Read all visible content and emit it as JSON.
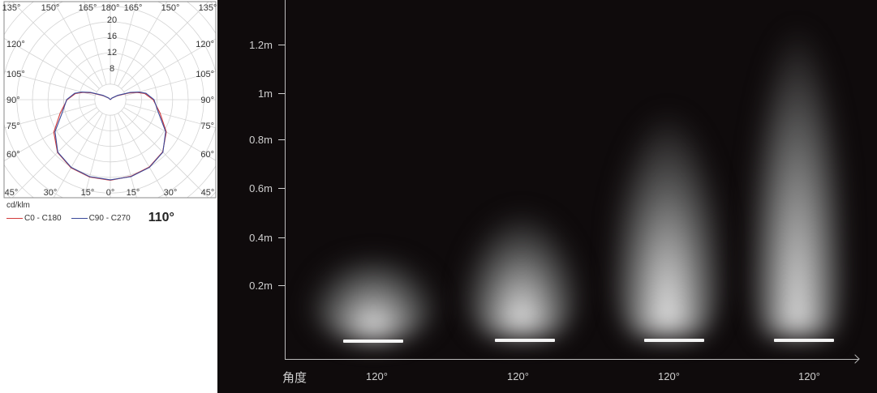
{
  "polar_chart": {
    "top_angle_labels": [
      "135°",
      "150°",
      "165°",
      "180°",
      "165°",
      "150°",
      "135°"
    ],
    "bottom_angle_labels": [
      "45°",
      "30°",
      "15°",
      "0°",
      "15°",
      "30°",
      "45°"
    ],
    "left_angle_labels": [
      "120°",
      "105°",
      "90°",
      "75°",
      "60°"
    ],
    "right_angle_labels": [
      "120°",
      "105°",
      "90°",
      "75°",
      "60°"
    ],
    "radial_labels": [
      "20",
      "16",
      "12",
      "8"
    ],
    "unit": "cd/klm",
    "legend": [
      {
        "label": "C0 - C180",
        "color": "#d23a3a"
      },
      {
        "label": "C90 - C270",
        "color": "#3a4a9a"
      }
    ],
    "beam_angle": "110°",
    "chart_data": {
      "type": "polar",
      "radial_range": [
        0,
        20
      ],
      "angles_deg": [
        0,
        15,
        30,
        45,
        60,
        75,
        90,
        100,
        105,
        110,
        120,
        135,
        180
      ],
      "series": [
        {
          "name": "C0 - C180",
          "values": [
            20.5,
            20.4,
            20,
            19,
            16.6,
            13.2,
            11,
            9,
            7.2,
            5,
            2,
            0.5,
            0
          ]
        },
        {
          "name": "C90 - C270",
          "values": [
            20.6,
            20.5,
            20.1,
            19.1,
            16.4,
            12.8,
            11.2,
            9.3,
            7.6,
            5.4,
            2.2,
            0.6,
            0
          ]
        }
      ]
    }
  },
  "beam_diagram": {
    "y_axis_labels": [
      "0.2m",
      "0.4m",
      "0.6m",
      "0.8m",
      "1m",
      "1.2m"
    ],
    "x_axis_title": "角度",
    "beam_angles": [
      "120°",
      "120°",
      "120°",
      "120°"
    ]
  }
}
